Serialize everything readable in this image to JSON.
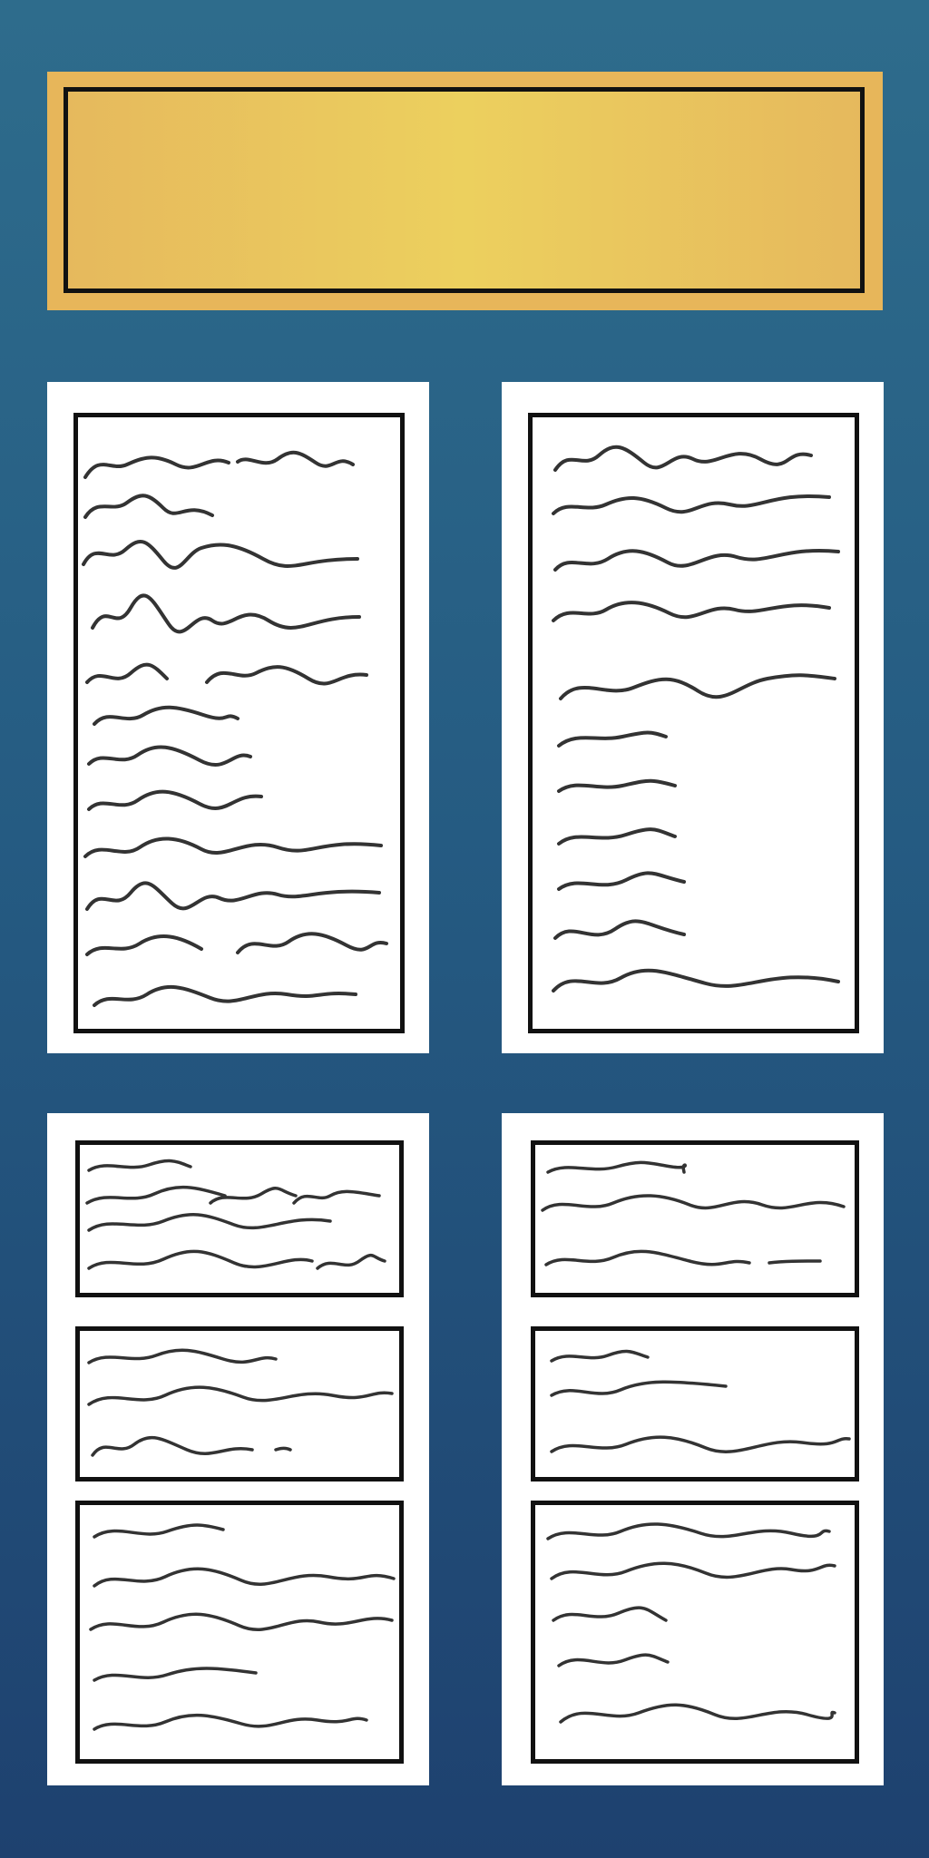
{
  "layout": {
    "background": "#255b82",
    "banner_color": "#e7b65a",
    "card_color": "#ffffff",
    "frame_border_color": "#111111",
    "scribble_color": "#333333"
  }
}
